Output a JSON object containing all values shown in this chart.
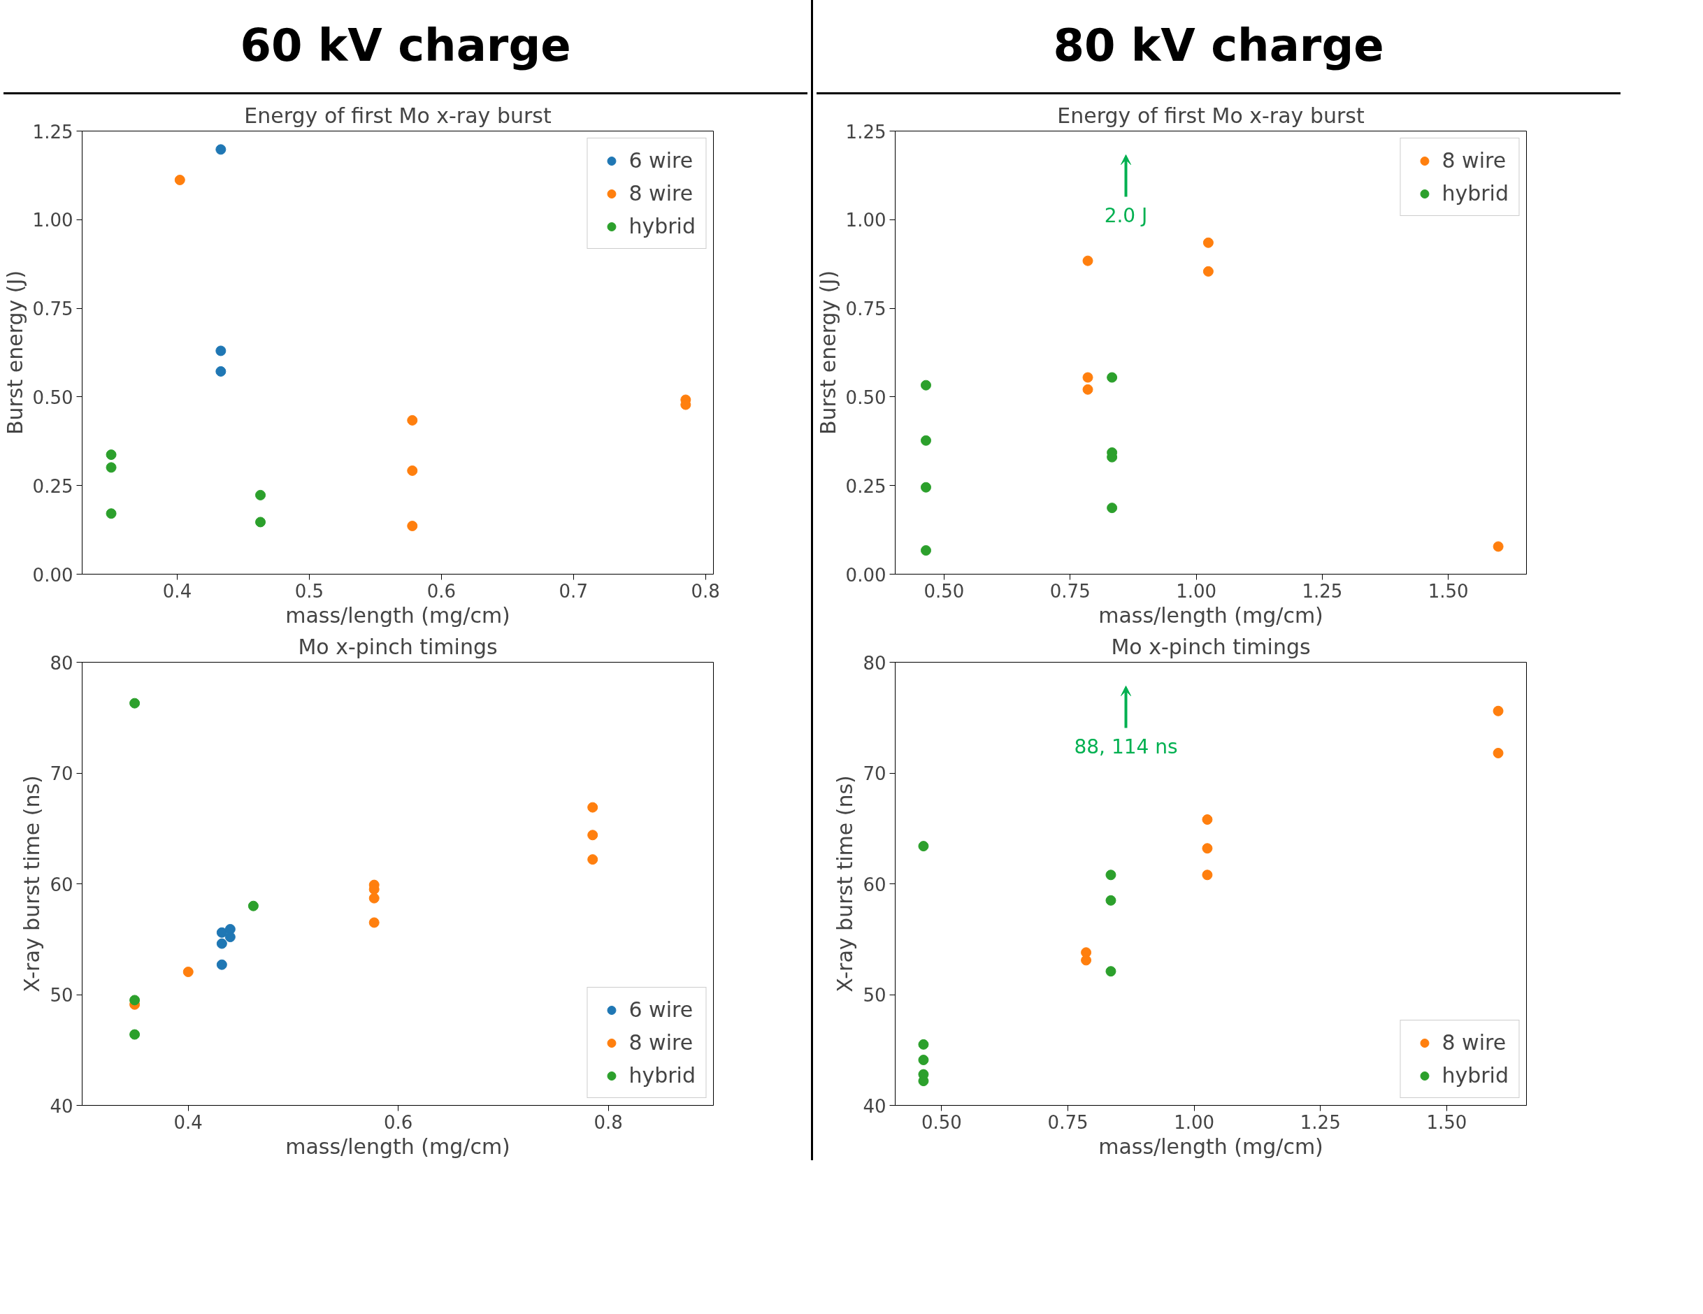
{
  "chart_data": [
    {
      "type": "scatter",
      "title": "Energy of first Mo x-ray burst",
      "xlabel": "mass/length (mg/cm)",
      "ylabel": "Burst energy (J)",
      "annotations": [
        "60 kV charge"
      ],
      "xlim": [
        0.328,
        0.806
      ],
      "ylim": [
        0,
        1.25
      ],
      "xticks": [
        0.4,
        0.5,
        0.6,
        0.7,
        0.8
      ],
      "yticks": [
        {
          "value": 0,
          "label": "0.00"
        },
        {
          "value": 0.25,
          "label": "0.25"
        },
        {
          "value": 0.5,
          "label": "0.50"
        },
        {
          "value": 0.75,
          "label": "0.75"
        },
        {
          "value": 1,
          "label": "1.00"
        },
        {
          "value": 1.25,
          "label": "1.25"
        }
      ],
      "marker": "circle",
      "legend": "top right",
      "series": [
        {
          "name": "6 wire",
          "color": "#1f77b4",
          "x": [
            0.433,
            0.433,
            0.433
          ],
          "values": [
            1.198,
            0.63,
            0.572
          ]
        },
        {
          "name": "8 wire",
          "color": "#ff7f0e",
          "x": [
            0.402,
            0.578,
            0.578,
            0.578,
            0.785,
            0.785
          ],
          "values": [
            1.112,
            0.434,
            0.292,
            0.136,
            0.492,
            0.478
          ]
        },
        {
          "name": "hybrid",
          "color": "#2ca02c",
          "x": [
            0.35,
            0.35,
            0.35,
            0.463,
            0.463
          ],
          "values": [
            0.337,
            0.301,
            0.171,
            0.223,
            0.147
          ]
        }
      ]
    },
    {
      "type": "scatter",
      "title": "Energy of first Mo x-ray burst",
      "xlabel": "mass/length (mg/cm)",
      "ylabel": "Burst energy (J)",
      "annotations": [
        "80 kV charge",
        "2.0 J"
      ],
      "xlim": [
        0.403,
        1.655
      ],
      "ylim": [
        0,
        1.25
      ],
      "xticks": [
        {
          "value": 0.5,
          "label": "0.50"
        },
        {
          "value": 0.75,
          "label": "0.75"
        },
        {
          "value": 1,
          "label": "1.00"
        },
        {
          "value": 1.25,
          "label": "1.25"
        },
        {
          "value": 1.5,
          "label": "1.50"
        }
      ],
      "yticks": [
        {
          "value": 0,
          "label": "0.00"
        },
        {
          "value": 0.25,
          "label": "0.25"
        },
        {
          "value": 0.5,
          "label": "0.50"
        },
        {
          "value": 0.75,
          "label": "0.75"
        },
        {
          "value": 1,
          "label": "1.00"
        },
        {
          "value": 1.25,
          "label": "1.25"
        }
      ],
      "marker": "circle",
      "legend": "top right",
      "series": [
        {
          "name": "8 wire",
          "color": "#ff7f0e",
          "x": [
            0.785,
            0.785,
            0.785,
            1.024,
            1.024,
            1.599
          ],
          "values": [
            0.884,
            0.555,
            0.521,
            0.935,
            0.854,
            0.078
          ]
        },
        {
          "name": "hybrid",
          "color": "#2ca02c",
          "x": [
            0.464,
            0.464,
            0.464,
            0.464,
            0.833,
            0.833,
            0.833,
            0.833
          ],
          "values": [
            0.533,
            0.377,
            0.245,
            0.067,
            0.555,
            0.343,
            0.33,
            0.187
          ]
        }
      ]
    },
    {
      "type": "scatter",
      "title": "Mo x-pinch timings",
      "xlabel": "mass/length (mg/cm)",
      "ylabel": "X-ray burst time (ns)",
      "xlim": [
        0.299,
        0.9
      ],
      "ylim": [
        40,
        80
      ],
      "xticks": [
        0.4,
        0.6,
        0.8
      ],
      "yticks": [
        40,
        50,
        60,
        70,
        80
      ],
      "marker": "circle",
      "legend": "bottom right",
      "series": [
        {
          "name": "6 wire",
          "color": "#1f77b4",
          "x": [
            0.432,
            0.432,
            0.432,
            0.44,
            0.44
          ],
          "values": [
            55.6,
            54.6,
            52.7,
            55.9,
            55.2
          ]
        },
        {
          "name": "8 wire",
          "color": "#ff7f0e",
          "x": [
            0.349,
            0.4,
            0.577,
            0.577,
            0.577,
            0.577,
            0.785,
            0.785,
            0.785
          ],
          "values": [
            49.1,
            52.05,
            59.9,
            59.5,
            58.7,
            56.5,
            66.9,
            64.4,
            62.2
          ]
        },
        {
          "name": "hybrid",
          "color": "#2ca02c",
          "x": [
            0.349,
            0.349,
            0.349,
            0.462
          ],
          "values": [
            76.3,
            49.5,
            46.4,
            58.0
          ]
        }
      ]
    },
    {
      "type": "scatter",
      "title": "Mo x-pinch timings",
      "xlabel": "mass/length (mg/cm)",
      "ylabel": "X-ray burst time (ns)",
      "annotations": [
        "88, 114 ns"
      ],
      "xlim": [
        0.408,
        1.658
      ],
      "ylim": [
        40,
        80
      ],
      "xticks": [
        {
          "value": 0.5,
          "label": "0.50"
        },
        {
          "value": 0.75,
          "label": "0.75"
        },
        {
          "value": 1,
          "label": "1.00"
        },
        {
          "value": 1.25,
          "label": "1.25"
        },
        {
          "value": 1.5,
          "label": "1.50"
        }
      ],
      "yticks": [
        40,
        50,
        60,
        70,
        80
      ],
      "marker": "circle",
      "legend": "bottom right",
      "series": [
        {
          "name": "8 wire",
          "color": "#ff7f0e",
          "x": [
            0.786,
            0.786,
            1.026,
            1.026,
            1.026,
            1.602,
            1.602
          ],
          "values": [
            53.8,
            53.1,
            65.8,
            63.2,
            60.8,
            75.6,
            71.8
          ]
        },
        {
          "name": "hybrid",
          "color": "#2ca02c",
          "x": [
            0.464,
            0.464,
            0.464,
            0.464,
            0.464,
            0.835,
            0.835,
            0.835
          ],
          "values": [
            63.4,
            45.5,
            44.1,
            42.8,
            42.2,
            60.8,
            58.5,
            52.1
          ]
        }
      ]
    }
  ]
}
